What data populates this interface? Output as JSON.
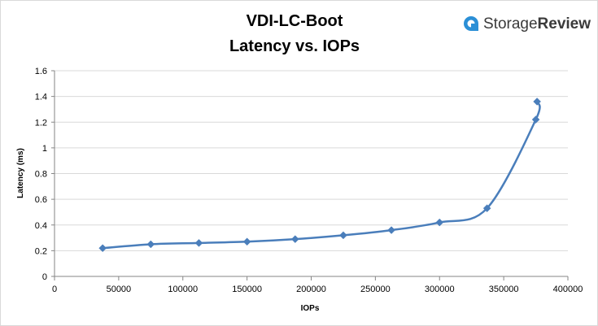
{
  "brand": {
    "name_part1": "Storage",
    "name_part2": "Review",
    "logo_color": "#2b8fd6",
    "icon": "storagereview-logo-icon"
  },
  "chart_data": {
    "type": "scatter",
    "title": "VDI-LC-Boot",
    "subtitle": "Latency vs. IOPs",
    "xlabel": "IOPs",
    "ylabel": "Latency (ms)",
    "xlim": [
      0,
      400000
    ],
    "ylim": [
      0,
      1.6
    ],
    "x_ticks": [
      0,
      50000,
      100000,
      150000,
      200000,
      250000,
      300000,
      350000,
      400000
    ],
    "y_ticks": [
      0,
      0.2,
      0.4,
      0.6,
      0.8,
      1,
      1.2,
      1.4,
      1.6
    ],
    "grid": "horizontal",
    "legend": "none",
    "series": [
      {
        "color": "#4a7ebb",
        "smooth": true,
        "marker": "diamond",
        "points": [
          {
            "x": 37500,
            "y": 0.22
          },
          {
            "x": 75000,
            "y": 0.25
          },
          {
            "x": 112500,
            "y": 0.26
          },
          {
            "x": 150000,
            "y": 0.27
          },
          {
            "x": 187500,
            "y": 0.29
          },
          {
            "x": 225000,
            "y": 0.32
          },
          {
            "x": 262500,
            "y": 0.36
          },
          {
            "x": 300000,
            "y": 0.42
          },
          {
            "x": 337000,
            "y": 0.53
          },
          {
            "x": 375000,
            "y": 1.22
          },
          {
            "x": 376000,
            "y": 1.36
          }
        ]
      }
    ]
  }
}
